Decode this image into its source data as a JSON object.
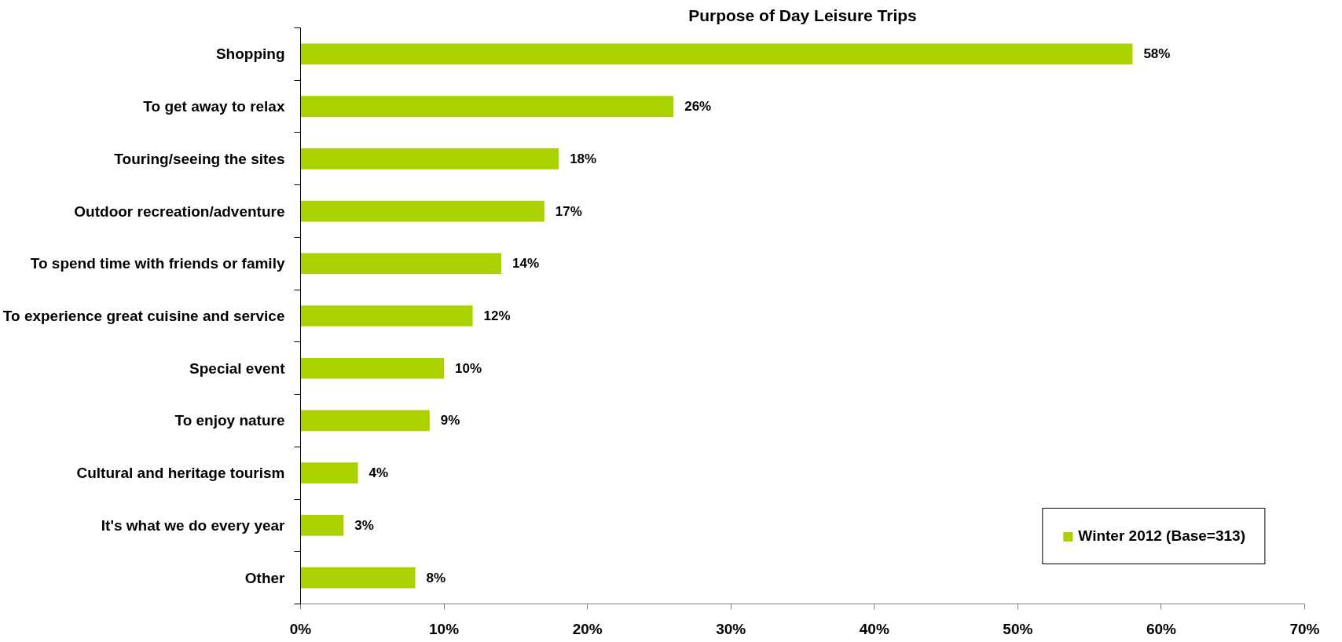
{
  "chart_data": {
    "type": "bar",
    "orientation": "horizontal",
    "title": "Purpose of Day Leisure Trips",
    "categories": [
      "Shopping",
      "To get away to relax",
      "Touring/seeing the sites",
      "Outdoor recreation/adventure",
      "To spend time with friends or family",
      "To experience great cuisine and service",
      "Special event",
      "To enjoy nature",
      "Cultural and heritage tourism",
      "It's what we do every year",
      "Other"
    ],
    "series": [
      {
        "name": "Winter 2012 (Base=313)",
        "color": "#a9d200",
        "values": [
          58,
          26,
          18,
          17,
          14,
          12,
          10,
          9,
          4,
          3,
          8
        ],
        "value_labels": [
          "58%",
          "26%",
          "18%",
          "17%",
          "14%",
          "12%",
          "10%",
          "9%",
          "4%",
          "3%",
          "8%"
        ]
      }
    ],
    "xlim": [
      0,
      70
    ],
    "xticks": [
      {
        "value": 0,
        "label": "0%"
      },
      {
        "value": 10,
        "label": "10%"
      },
      {
        "value": 20,
        "label": "20%"
      },
      {
        "value": 30,
        "label": "30%"
      },
      {
        "value": 40,
        "label": "40%"
      },
      {
        "value": 50,
        "label": "50%"
      },
      {
        "value": 60,
        "label": "60%"
      },
      {
        "value": 70,
        "label": "70%"
      }
    ],
    "legend": "bottom right"
  }
}
